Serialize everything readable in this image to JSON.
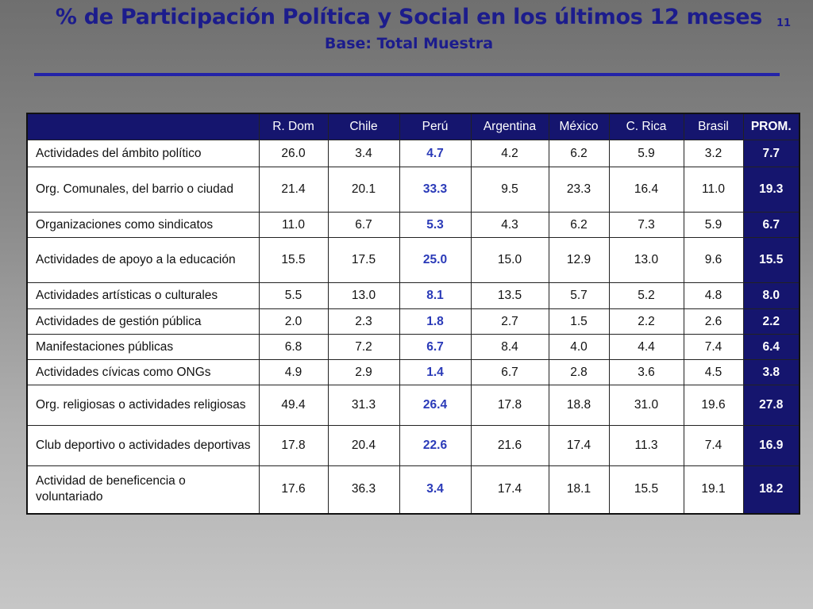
{
  "header": {
    "title": "% de Participación Política y Social en los últimos 12 meses",
    "subtitle": "Base: Total Muestra",
    "page_number": "11"
  },
  "chart_data": {
    "type": "table",
    "columns": [
      "R. Dom",
      "Chile",
      "Perú",
      "Argentina",
      "México",
      "C. Rica",
      "Brasil",
      "PROM."
    ],
    "rows": [
      {
        "label": "Actividades del ámbito político",
        "values": [
          "26.0",
          "3.4",
          "4.7",
          "4.2",
          "6.2",
          "5.9",
          "3.2",
          "7.7"
        ]
      },
      {
        "label": "Org. Comunales, del barrio o ciudad",
        "values": [
          "21.4",
          "20.1",
          "33.3",
          "9.5",
          "23.3",
          "16.4",
          "11.0",
          "19.3"
        ]
      },
      {
        "label": "Organizaciones como sindicatos",
        "values": [
          "11.0",
          "6.7",
          "5.3",
          "4.3",
          "6.2",
          "7.3",
          "5.9",
          "6.7"
        ]
      },
      {
        "label": "Actividades de apoyo a la educación",
        "values": [
          "15.5",
          "17.5",
          "25.0",
          "15.0",
          "12.9",
          "13.0",
          "9.6",
          "15.5"
        ]
      },
      {
        "label": "Actividades artísticas o culturales",
        "values": [
          "5.5",
          "13.0",
          "8.1",
          "13.5",
          "5.7",
          "5.2",
          "4.8",
          "8.0"
        ]
      },
      {
        "label": "Actividades de gestión pública",
        "values": [
          "2.0",
          "2.3",
          "1.8",
          "2.7",
          "1.5",
          "2.2",
          "2.6",
          "2.2"
        ]
      },
      {
        "label": "Manifestaciones públicas",
        "values": [
          "6.8",
          "7.2",
          "6.7",
          "8.4",
          "4.0",
          "4.4",
          "7.4",
          "6.4"
        ]
      },
      {
        "label": "Actividades cívicas como ONGs",
        "values": [
          "4.9",
          "2.9",
          "1.4",
          "6.7",
          "2.8",
          "3.6",
          "4.5",
          "3.8"
        ]
      },
      {
        "label": "Org. religiosas o actividades religiosas",
        "values": [
          "49.4",
          "31.3",
          "26.4",
          "17.8",
          "18.8",
          "31.0",
          "19.6",
          "27.8"
        ]
      },
      {
        "label": "Club deportivo o actividades deportivas",
        "values": [
          "17.8",
          "20.4",
          "22.6",
          "21.6",
          "17.4",
          "11.3",
          "7.4",
          "16.9"
        ]
      },
      {
        "label": "Actividad de beneficencia o voluntariado",
        "values": [
          "17.6",
          "36.3",
          "3.4",
          "17.4",
          "18.1",
          "15.5",
          "19.1",
          "18.2"
        ]
      }
    ],
    "highlight_column": "Perú",
    "summary_column": "PROM."
  },
  "colors": {
    "title": "#1c1c8c",
    "header_bg": "#15156e",
    "highlight_text": "#2a3ab8"
  }
}
